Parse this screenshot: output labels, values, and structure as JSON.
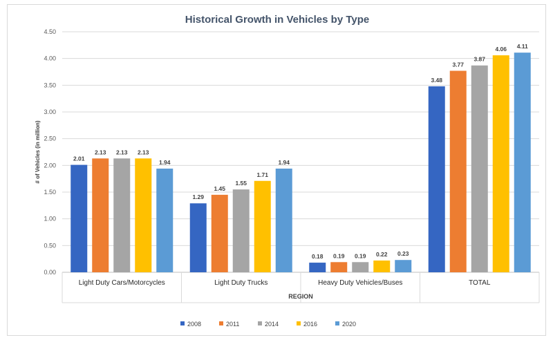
{
  "chart_data": {
    "type": "bar",
    "title": "Historical Growth in Vehicles by Type",
    "xlabel": "REGION",
    "ylabel": "# of Vehicles  (in million)",
    "categories": [
      "Light Duty Cars/Motorcycles",
      "Light Duty Trucks",
      "Heavy Duty Vehicles/Buses",
      "TOTAL"
    ],
    "yticks": [
      "0.00",
      "0.50",
      "1.00",
      "1.50",
      "2.00",
      "2.50",
      "3.00",
      "3.50",
      "4.00",
      "4.50"
    ],
    "ylim": [
      0,
      4.5
    ],
    "grid": true,
    "legend_position": "bottom",
    "series": [
      {
        "name": "2008",
        "color": "#3566c2",
        "values": [
          2.01,
          1.29,
          0.18,
          3.48
        ],
        "labels": [
          "2.01",
          "1.29",
          "0.18",
          "3.48"
        ]
      },
      {
        "name": "2011",
        "color": "#ed7d31",
        "values": [
          2.13,
          1.45,
          0.19,
          3.77
        ],
        "labels": [
          "2.13",
          "1.45",
          "0.19",
          "3.77"
        ]
      },
      {
        "name": "2014",
        "color": "#a5a5a5",
        "values": [
          2.13,
          1.55,
          0.19,
          3.87
        ],
        "labels": [
          "2.13",
          "1.55",
          "0.19",
          "3.87"
        ]
      },
      {
        "name": "2016",
        "color": "#ffc000",
        "values": [
          2.13,
          1.71,
          0.22,
          4.06
        ],
        "labels": [
          "2.13",
          "1.71",
          "0.22",
          "4.06"
        ]
      },
      {
        "name": "2020",
        "color": "#5b9bd5",
        "values": [
          1.94,
          1.94,
          0.23,
          4.11
        ],
        "labels": [
          "1.94",
          "1.94",
          "0.23",
          "4.11"
        ]
      }
    ]
  }
}
